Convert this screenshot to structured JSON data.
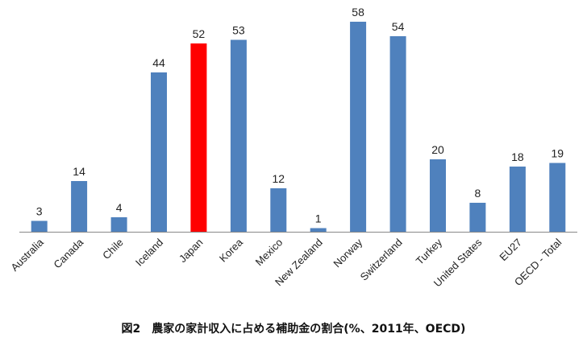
{
  "chart_data": {
    "type": "bar",
    "title": "図2　農家の家計収入に占める補助金の割合(%、2011年、OECD)",
    "xlabel": "",
    "ylabel": "",
    "ylim": [
      0,
      60
    ],
    "grid": false,
    "legend": "none",
    "categories": [
      "Australia",
      "Canada",
      "Chile",
      "Iceland",
      "Japan",
      "Korea",
      "Mexico",
      "New Zealand",
      "Norway",
      "Switzerland",
      "Turkey",
      "United States",
      "EU27",
      "OECD - Total"
    ],
    "values": [
      3,
      14,
      4,
      44,
      52,
      53,
      12,
      1,
      58,
      54,
      20,
      8,
      18,
      19
    ],
    "colors": {
      "default": "#4f81bd",
      "highlight": "#ff0000",
      "highlight_category": "Japan"
    }
  }
}
